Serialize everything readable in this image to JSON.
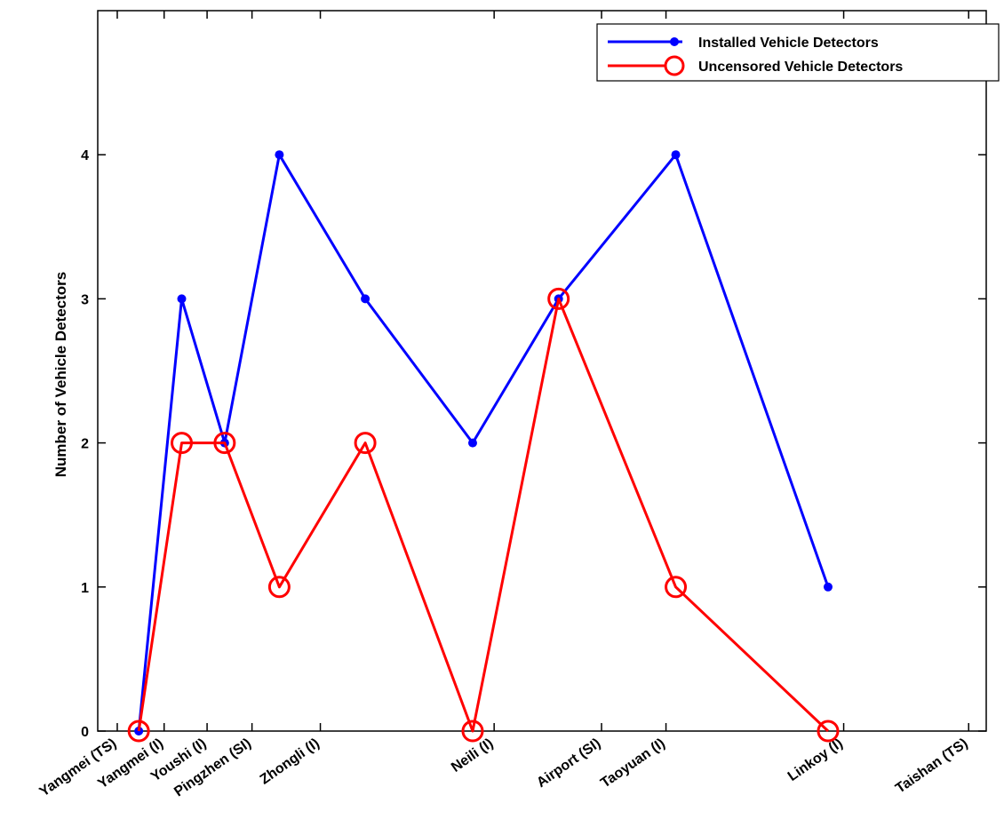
{
  "chart_data": {
    "type": "line",
    "title": "",
    "xlabel": "",
    "ylabel": "Number of Vehicle Detectors",
    "ylim": [
      0,
      5
    ],
    "y_ticks": [
      0,
      1,
      2,
      3,
      4
    ],
    "x_tick_labels": [
      "Yangmei (TS)",
      "Yangmei (I)",
      "Youshi (I)",
      "Pingzhen (SI)",
      "Zhongli (I)",
      "Neili (I)",
      "Airport (SI)",
      "Taoyuan (I)",
      "Linkoy (I)",
      "Taishan (TS)"
    ],
    "x_tick_positions_km": [
      0,
      2.4,
      4.6,
      6.9,
      10.4,
      19.3,
      24.8,
      28.1,
      37.2,
      43.6
    ],
    "xlim": [
      -1,
      44.5
    ],
    "grid": false,
    "legend_position": "top-right",
    "series": [
      {
        "name": "Installed Vehicle Detectors",
        "color": "#0000ff",
        "marker": "dot",
        "x": [
          1.1,
          3.3,
          5.5,
          8.3,
          12.7,
          18.2,
          22.6,
          28.6,
          36.4
        ],
        "y": [
          0,
          3,
          2,
          4,
          3,
          2,
          3,
          4,
          1
        ]
      },
      {
        "name": "Uncensored Vehicle Detectors",
        "color": "#ff0000",
        "marker": "circle",
        "x": [
          1.1,
          3.3,
          5.5,
          8.3,
          12.7,
          18.2,
          22.6,
          28.6,
          36.4
        ],
        "y": [
          0,
          2,
          2,
          1,
          2,
          0,
          3,
          1,
          0
        ]
      }
    ]
  }
}
